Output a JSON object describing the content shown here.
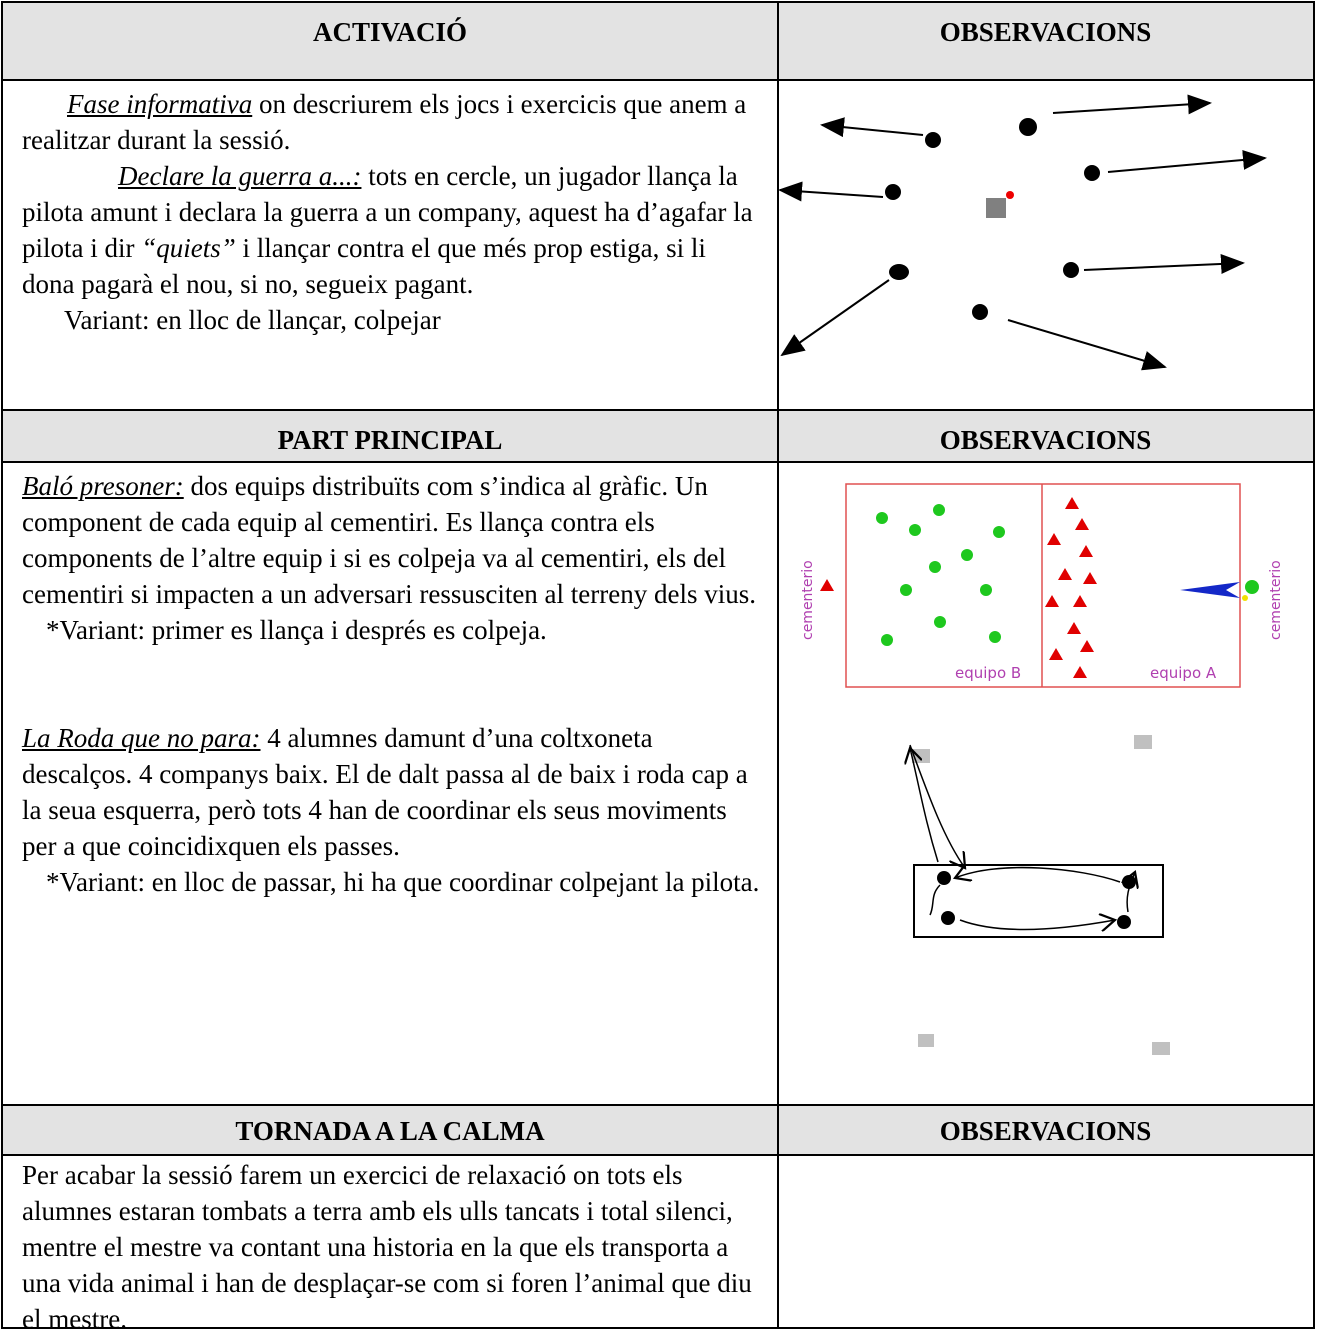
{
  "sections": [
    {
      "heading": "ACTIVACIÓ",
      "notes_heading": "OBSERVACIONS",
      "paragraphs": [
        [
          "Fase informativa",
          "  on descriurem els jocs i exercicis que anem a realitzar durant la sessió."
        ],
        [
          "Declare la guerra a...:",
          " tots en cercle, un jugador llança la pilota amunt i declara la guerra a un company, aquest ha d’agafar la pilota i dir ",
          "“quiets”",
          " i llançar contra el que més prop estiga, si li dona pagarà el nou, si no, segueix pagant."
        ],
        [
          "Variant: en lloc de llançar, colpejar"
        ]
      ]
    },
    {
      "heading": "PART PRINCIPAL",
      "notes_heading": "OBSERVACIONS",
      "paragraphs": [
        [
          "Baló presoner:",
          " dos equips distribuïts com s’indica al gràfic. Un component de cada equip al cementiri. Es llança contra els components de l’altre equip i si es colpeja va al cementiri, els del cementiri si impacten a un adversari ressusciten al terreny dels vius."
        ],
        [
          "*Variant: primer es llança i després es colpeja."
        ],
        [
          "La Roda que no para:",
          " 4 alumnes damunt d’una coltxoneta descalços. 4 companys baix. El de dalt passa al de baix i roda cap a la seua esquerra, però tots 4 han de coordinar els seus moviments per a que coincidixquen els passes."
        ],
        [
          "*Variant: en lloc de passar, hi ha que coordinar colpejant la pilota."
        ]
      ],
      "diagram_labels": {
        "left_cemetery": "cementerio",
        "right_cemetery": "cementerio",
        "team_b": "equipo B",
        "team_a": "equipo A"
      }
    },
    {
      "heading": "TORNADA A LA CALMA",
      "notes_heading": "OBSERVACIONS",
      "paragraphs": [
        [
          "Per acabar la sessió farem un exercici de relaxació on tots els alumnes estaran tombats a terra amb els ulls tancats i total silenci, mentre el mestre va contant una historia en la que els transporta a una vida animal i han de desplaçar-se com si foren l’animal que diu el mestre."
        ]
      ]
    }
  ]
}
